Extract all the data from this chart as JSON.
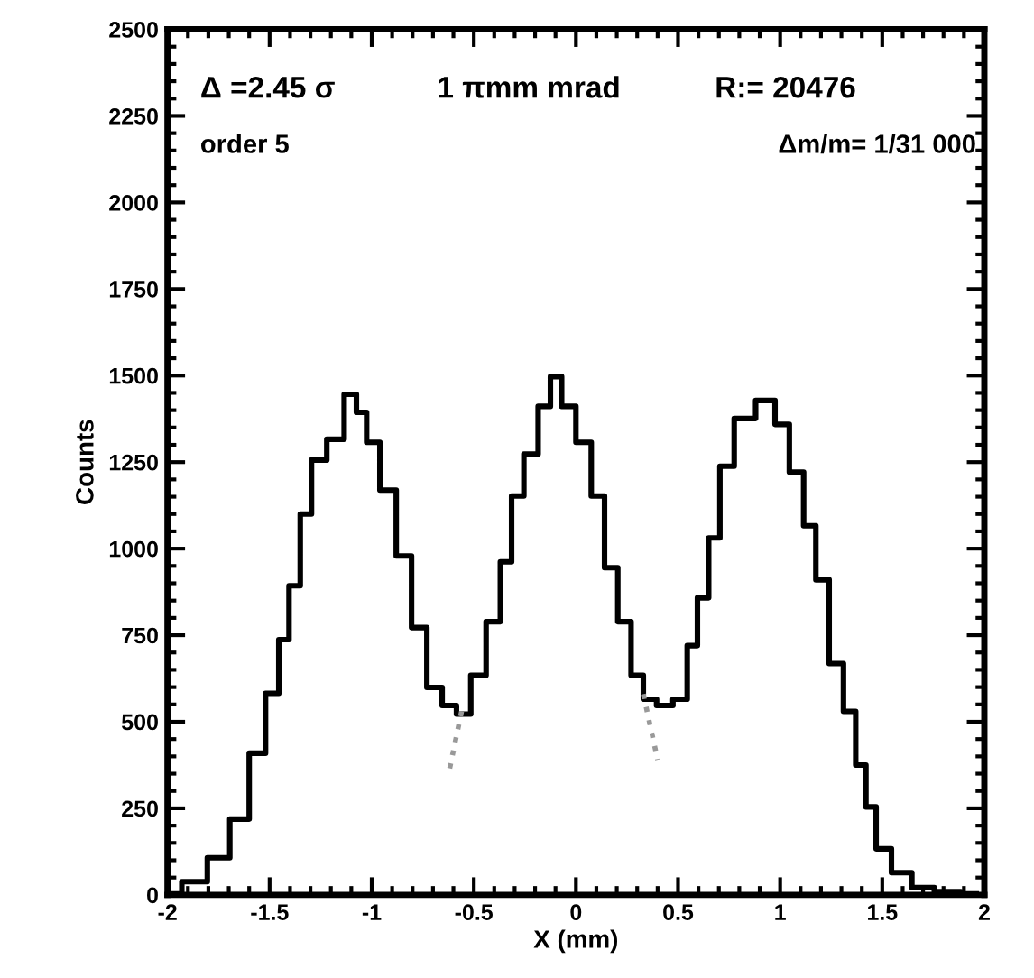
{
  "chart_data": {
    "type": "step",
    "xlabel": "X (mm)",
    "ylabel": "Counts",
    "xlim": [
      -2,
      2
    ],
    "ylim": [
      0,
      2500
    ],
    "xticks": [
      -2,
      -1.5,
      -1,
      -0.5,
      0,
      0.5,
      1,
      1.5,
      2
    ],
    "yticks": [
      0,
      250,
      500,
      750,
      1000,
      1250,
      1500,
      1750,
      2000,
      2250,
      2500
    ],
    "grid": false,
    "annotations": [
      "Δ =2.45 σ",
      "1 πmm mrad",
      "R:= 20476",
      "order 5",
      "Δm/m= 1/31 000"
    ],
    "series": [
      {
        "color": "#000000",
        "line_style": "solid",
        "x": [
          -2,
          -1.86,
          -1.75,
          -1.64,
          -1.56,
          -1.48,
          -1.43,
          -1.38,
          -1.32,
          -1.27,
          -1.17,
          -1.1,
          -1.05,
          -1.0,
          -0.92,
          -0.84,
          -0.77,
          -0.69,
          -0.62,
          -0.55,
          -0.48,
          -0.4,
          -0.34,
          -0.29,
          -0.22,
          -0.15,
          -0.1,
          -0.04,
          0.04,
          0.11,
          0.17,
          0.24,
          0.3,
          0.36,
          0.43,
          0.52,
          0.57,
          0.62,
          0.68,
          0.73,
          0.82,
          0.94,
          1.01,
          1.08,
          1.15,
          1.2,
          1.28,
          1.34,
          1.4,
          1.44,
          1.5,
          1.59,
          1.7,
          1.81,
          1.96
        ],
        "values": [
          3,
          38,
          107,
          219,
          409,
          582,
          737,
          893,
          1100,
          1256,
          1316,
          1446,
          1394,
          1307,
          1169,
          979,
          772,
          599,
          547,
          522,
          634,
          789,
          962,
          1152,
          1273,
          1411,
          1497,
          1411,
          1307,
          1152,
          945,
          789,
          634,
          565,
          547,
          565,
          720,
          858,
          1031,
          1238,
          1376,
          1428,
          1359,
          1221,
          1066,
          910,
          668,
          530,
          375,
          254,
          133,
          64,
          21,
          9,
          3
        ]
      },
      {
        "type": "line",
        "color": "#999999",
        "line_style": "dotted",
        "x": [
          -0.56,
          -0.62
        ],
        "values": [
          530,
          360
        ]
      },
      {
        "type": "line",
        "color": "#999999",
        "line_style": "dotted",
        "x": [
          0.33,
          0.4
        ],
        "values": [
          580,
          390
        ]
      }
    ]
  }
}
